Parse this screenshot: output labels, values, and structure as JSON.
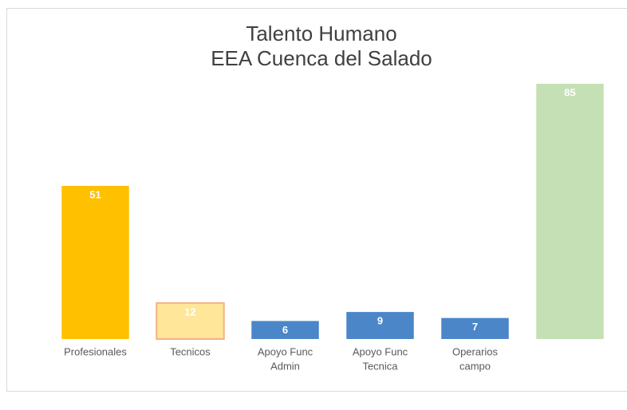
{
  "chart_data": {
    "type": "bar",
    "title": [
      "Talento Humano",
      "EEA Cuenca del Salado"
    ],
    "categories": [
      [
        "Profesionales"
      ],
      [
        "Tecnicos"
      ],
      [
        "Apoyo Func",
        "Admin"
      ],
      [
        "Apoyo Func",
        "Tecnica"
      ],
      [
        "Operarios",
        "campo"
      ],
      null
    ],
    "values": [
      51,
      12,
      6,
      9,
      7,
      85
    ],
    "colors": [
      "#ffc000",
      "#ffe699",
      "#4a86c8",
      "#4a86c8",
      "#4a86c8",
      "#c5e0b4"
    ],
    "ylim": [
      0,
      85
    ]
  }
}
